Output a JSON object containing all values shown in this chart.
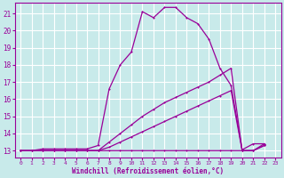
{
  "background_color": "#c8eaea",
  "grid_color": "#ffffff",
  "line_color": "#990099",
  "xlabel": "Windchill (Refroidissement éolien,°C)",
  "ylabel_ticks": [
    13,
    14,
    15,
    16,
    17,
    18,
    19,
    20,
    21
  ],
  "xlabel_ticks": [
    0,
    1,
    2,
    3,
    4,
    5,
    6,
    7,
    8,
    9,
    10,
    11,
    12,
    13,
    14,
    15,
    16,
    17,
    18,
    19,
    20,
    21,
    22,
    23
  ],
  "xlim": [
    -0.5,
    23.5
  ],
  "ylim": [
    12.6,
    21.6
  ],
  "series": [
    {
      "x": [
        0,
        1,
        2,
        3,
        4,
        5,
        6,
        7,
        8,
        9,
        10,
        11,
        12,
        13,
        14,
        15,
        16,
        17,
        18,
        19,
        20,
        21,
        22
      ],
      "y": [
        13.0,
        13.0,
        13.1,
        13.1,
        13.1,
        13.1,
        13.1,
        13.3,
        16.6,
        18.0,
        18.75,
        21.1,
        20.75,
        21.35,
        21.35,
        20.75,
        20.4,
        19.5,
        17.8,
        16.8,
        13.05,
        13.4,
        13.4
      ]
    },
    {
      "x": [
        0,
        1,
        2,
        3,
        4,
        5,
        6,
        7,
        8,
        9,
        10,
        11,
        12,
        13,
        14,
        15,
        16,
        17,
        18,
        19,
        20,
        21,
        22
      ],
      "y": [
        13.0,
        13.0,
        13.0,
        13.0,
        13.0,
        13.0,
        13.0,
        13.0,
        13.5,
        14.0,
        14.5,
        15.0,
        15.4,
        15.8,
        16.1,
        16.4,
        16.7,
        17.0,
        17.4,
        17.8,
        13.0,
        13.0,
        13.4
      ]
    },
    {
      "x": [
        0,
        1,
        2,
        3,
        4,
        5,
        6,
        7,
        8,
        9,
        10,
        11,
        12,
        13,
        14,
        15,
        16,
        17,
        18,
        19,
        20,
        21,
        22
      ],
      "y": [
        13.0,
        13.0,
        13.0,
        13.0,
        13.0,
        13.0,
        13.0,
        13.0,
        13.2,
        13.5,
        13.8,
        14.1,
        14.4,
        14.7,
        15.0,
        15.3,
        15.6,
        15.9,
        16.2,
        16.5,
        13.0,
        13.0,
        13.3
      ]
    },
    {
      "x": [
        0,
        1,
        2,
        3,
        4,
        5,
        6,
        7,
        8,
        9,
        10,
        11,
        12,
        13,
        14,
        15,
        16,
        17,
        18,
        19,
        20,
        21,
        22
      ],
      "y": [
        13.0,
        13.0,
        13.0,
        13.0,
        13.0,
        13.0,
        13.0,
        13.0,
        13.0,
        13.0,
        13.0,
        13.0,
        13.0,
        13.0,
        13.0,
        13.0,
        13.0,
        13.0,
        13.0,
        13.0,
        13.0,
        13.0,
        13.3
      ]
    }
  ]
}
